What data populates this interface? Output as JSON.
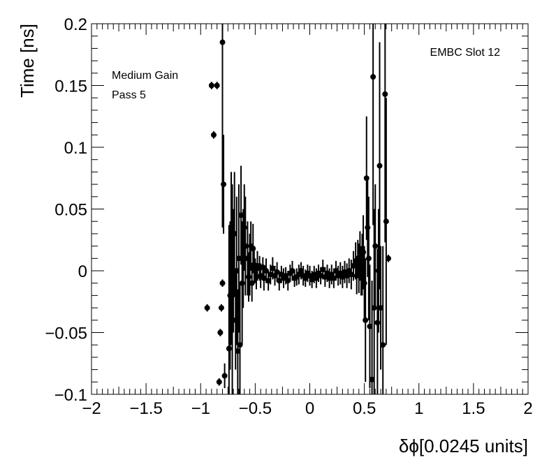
{
  "chart_data": {
    "type": "scatter",
    "title": "",
    "xlabel": "δϕ[0.0245 units]",
    "ylabel": "Time [ns]",
    "xlim": [
      -2,
      2
    ],
    "ylim": [
      -0.1,
      0.2
    ],
    "x_ticks": [
      -2,
      -1.5,
      -1,
      -0.5,
      0,
      0.5,
      1,
      1.5,
      2
    ],
    "x_tick_labels": [
      "−2",
      "−1.5",
      "−1",
      "−0.5",
      "0",
      "0.5",
      "1",
      "1.5",
      "2"
    ],
    "y_ticks": [
      -0.1,
      -0.05,
      0,
      0.05,
      0.1,
      0.15,
      0.2
    ],
    "y_tick_labels": [
      "−0.1",
      "−0.05",
      "0",
      "0.05",
      "0.1",
      "0.15",
      "0.2"
    ],
    "grid": false,
    "legend": null,
    "annotations": {
      "top_right": "EMBC Slot 12",
      "top_left_line1": "Medium Gain",
      "top_left_line2": "Pass 5"
    },
    "marker_color": "#000000",
    "points": [
      {
        "x": -0.94,
        "y": -0.03,
        "err": 0.003
      },
      {
        "x": -0.9,
        "y": 0.15,
        "err": 0.003
      },
      {
        "x": -0.88,
        "y": 0.11,
        "err": 0.003
      },
      {
        "x": -0.85,
        "y": 0.15,
        "err": 0.003
      },
      {
        "x": -0.83,
        "y": -0.09,
        "err": 0.003
      },
      {
        "x": -0.82,
        "y": -0.05,
        "err": 0.003
      },
      {
        "x": -0.81,
        "y": -0.03,
        "err": 0.003
      },
      {
        "x": -0.8,
        "y": 0.185,
        "err": 0.15
      },
      {
        "x": -0.8,
        "y": -0.01,
        "err": 0.003
      },
      {
        "x": -0.79,
        "y": 0.07,
        "err": 0.04
      },
      {
        "x": -0.78,
        "y": -0.085,
        "err": 0.01
      },
      {
        "x": -0.74,
        "y": -0.063,
        "err": 0.1
      },
      {
        "x": -0.73,
        "y": -0.02,
        "err": 0.06
      },
      {
        "x": -0.72,
        "y": 0.01,
        "err": 0.07
      },
      {
        "x": -0.71,
        "y": -0.02,
        "err": 0.09
      },
      {
        "x": -0.7,
        "y": 0.0,
        "err": 0.05
      },
      {
        "x": -0.69,
        "y": 0.03,
        "err": 0.05
      },
      {
        "x": -0.68,
        "y": -0.04,
        "err": 0.04
      },
      {
        "x": -0.67,
        "y": 0.0,
        "err": 0.06
      },
      {
        "x": -0.66,
        "y": -0.065,
        "err": 0.05
      },
      {
        "x": -0.65,
        "y": 0.01,
        "err": 0.06
      },
      {
        "x": -0.64,
        "y": -0.06,
        "err": 0.05
      },
      {
        "x": -0.63,
        "y": 0.045,
        "err": 0.04
      },
      {
        "x": -0.62,
        "y": -0.01,
        "err": 0.05
      },
      {
        "x": -0.61,
        "y": 0.01,
        "err": 0.04
      },
      {
        "x": -0.6,
        "y": 0.035,
        "err": 0.035
      },
      {
        "x": -0.59,
        "y": 0.02,
        "err": 0.04
      },
      {
        "x": -0.57,
        "y": 0.01,
        "err": 0.03
      },
      {
        "x": -0.56,
        "y": -0.005,
        "err": 0.02
      },
      {
        "x": -0.55,
        "y": 0.005,
        "err": 0.025
      },
      {
        "x": -0.54,
        "y": 0.02,
        "err": 0.02
      },
      {
        "x": -0.53,
        "y": -0.01,
        "err": 0.015
      },
      {
        "x": -0.52,
        "y": 0.018,
        "err": 0.02
      },
      {
        "x": -0.51,
        "y": 0.005,
        "err": 0.015
      },
      {
        "x": -0.5,
        "y": 0.0,
        "err": 0.01
      },
      {
        "x": -0.49,
        "y": -0.005,
        "err": 0.01
      },
      {
        "x": -0.48,
        "y": 0.004,
        "err": 0.012
      },
      {
        "x": -0.46,
        "y": 0.002,
        "err": 0.01
      },
      {
        "x": -0.45,
        "y": -0.004,
        "err": 0.01
      },
      {
        "x": -0.43,
        "y": 0.003,
        "err": 0.008
      },
      {
        "x": -0.42,
        "y": -0.006,
        "err": 0.01
      },
      {
        "x": -0.4,
        "y": 0.0,
        "err": 0.01
      },
      {
        "x": -0.38,
        "y": -0.008,
        "err": 0.008
      },
      {
        "x": -0.36,
        "y": -0.003,
        "err": 0.008
      },
      {
        "x": -0.34,
        "y": 0.002,
        "err": 0.009
      },
      {
        "x": -0.32,
        "y": -0.004,
        "err": 0.008
      },
      {
        "x": -0.3,
        "y": -0.001,
        "err": 0.008
      },
      {
        "x": -0.28,
        "y": -0.008,
        "err": 0.008
      },
      {
        "x": -0.26,
        "y": -0.003,
        "err": 0.007
      },
      {
        "x": -0.24,
        "y": -0.006,
        "err": 0.008
      },
      {
        "x": -0.22,
        "y": -0.004,
        "err": 0.007
      },
      {
        "x": -0.2,
        "y": -0.008,
        "err": 0.008
      },
      {
        "x": -0.18,
        "y": -0.002,
        "err": 0.007
      },
      {
        "x": -0.16,
        "y": 0.0,
        "err": 0.008
      },
      {
        "x": -0.14,
        "y": -0.006,
        "err": 0.007
      },
      {
        "x": -0.12,
        "y": -0.005,
        "err": 0.007
      },
      {
        "x": -0.1,
        "y": -0.003,
        "err": 0.008
      },
      {
        "x": -0.08,
        "y": 0.0,
        "err": 0.007
      },
      {
        "x": -0.06,
        "y": -0.004,
        "err": 0.008
      },
      {
        "x": -0.04,
        "y": -0.006,
        "err": 0.007
      },
      {
        "x": -0.02,
        "y": -0.002,
        "err": 0.007
      },
      {
        "x": 0.0,
        "y": -0.004,
        "err": 0.008
      },
      {
        "x": 0.02,
        "y": -0.007,
        "err": 0.007
      },
      {
        "x": 0.04,
        "y": -0.003,
        "err": 0.007
      },
      {
        "x": 0.06,
        "y": -0.006,
        "err": 0.008
      },
      {
        "x": 0.08,
        "y": -0.002,
        "err": 0.007
      },
      {
        "x": 0.1,
        "y": -0.004,
        "err": 0.007
      },
      {
        "x": 0.12,
        "y": 0.001,
        "err": 0.008
      },
      {
        "x": 0.14,
        "y": -0.005,
        "err": 0.008
      },
      {
        "x": 0.16,
        "y": -0.002,
        "err": 0.007
      },
      {
        "x": 0.18,
        "y": -0.006,
        "err": 0.008
      },
      {
        "x": 0.2,
        "y": -0.003,
        "err": 0.008
      },
      {
        "x": 0.22,
        "y": -0.006,
        "err": 0.008
      },
      {
        "x": 0.24,
        "y": 0.0,
        "err": 0.008
      },
      {
        "x": 0.26,
        "y": -0.004,
        "err": 0.008
      },
      {
        "x": 0.28,
        "y": -0.002,
        "err": 0.009
      },
      {
        "x": 0.3,
        "y": -0.005,
        "err": 0.009
      },
      {
        "x": 0.32,
        "y": -0.001,
        "err": 0.009
      },
      {
        "x": 0.34,
        "y": -0.004,
        "err": 0.01
      },
      {
        "x": 0.36,
        "y": 0.0,
        "err": 0.01
      },
      {
        "x": 0.38,
        "y": -0.003,
        "err": 0.012
      },
      {
        "x": 0.4,
        "y": 0.004,
        "err": 0.012
      },
      {
        "x": 0.42,
        "y": 0.008,
        "err": 0.015
      },
      {
        "x": 0.43,
        "y": -0.004,
        "err": 0.015
      },
      {
        "x": 0.44,
        "y": 0.01,
        "err": 0.015
      },
      {
        "x": 0.45,
        "y": 0.002,
        "err": 0.02
      },
      {
        "x": 0.46,
        "y": 0.012,
        "err": 0.02
      },
      {
        "x": 0.47,
        "y": 0.0,
        "err": 0.02
      },
      {
        "x": 0.48,
        "y": 0.005,
        "err": 0.025
      },
      {
        "x": 0.49,
        "y": 0.015,
        "err": 0.03
      },
      {
        "x": 0.5,
        "y": -0.01,
        "err": 0.03
      },
      {
        "x": 0.51,
        "y": -0.04,
        "err": 0.05
      },
      {
        "x": 0.52,
        "y": 0.075,
        "err": 0.05
      },
      {
        "x": 0.53,
        "y": 0.035,
        "err": 0.04
      },
      {
        "x": 0.54,
        "y": 0.01,
        "err": 0.05
      },
      {
        "x": 0.55,
        "y": -0.045,
        "err": 0.05
      },
      {
        "x": 0.57,
        "y": -0.088,
        "err": 0.08
      },
      {
        "x": 0.58,
        "y": 0.157,
        "err": 0.12
      },
      {
        "x": 0.59,
        "y": -0.03,
        "err": 0.08
      },
      {
        "x": 0.6,
        "y": 0.02,
        "err": 0.05
      },
      {
        "x": 0.62,
        "y": -0.042,
        "err": 0.06
      },
      {
        "x": 0.63,
        "y": 0.0,
        "err": 0.05
      },
      {
        "x": 0.64,
        "y": 0.085,
        "err": 0.1
      },
      {
        "x": 0.65,
        "y": -0.03,
        "err": 0.05
      },
      {
        "x": 0.67,
        "y": -0.06,
        "err": 0.08
      },
      {
        "x": 0.69,
        "y": 0.143,
        "err": 0.12
      },
      {
        "x": 0.7,
        "y": 0.04,
        "err": 0.1
      },
      {
        "x": 0.72,
        "y": 0.01,
        "err": 0.003
      }
    ]
  }
}
